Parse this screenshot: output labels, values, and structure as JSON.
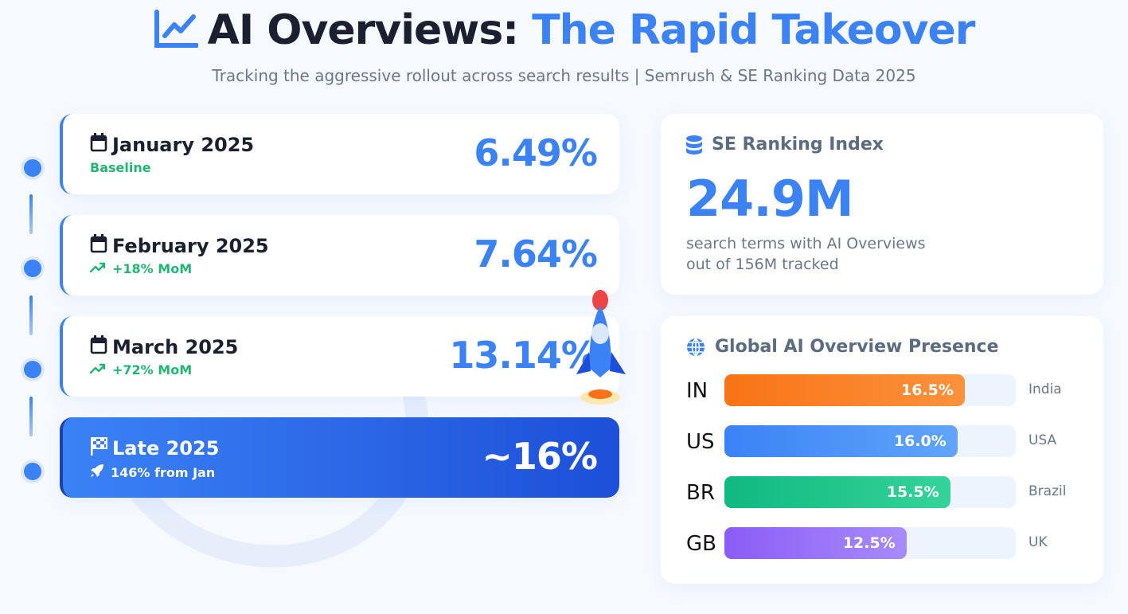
{
  "header": {
    "title_part1": "AI Overviews:",
    "title_part2": "The Rapid Takeover",
    "subtitle": "Tracking the aggressive rollout across search results | Semrush & SE Ranking Data 2025",
    "icon": "chart-line-icon"
  },
  "timeline": [
    {
      "label": "January 2025",
      "sub": "Baseline",
      "value": "6.49%",
      "icon": "calendar-icon",
      "sub_icon": ""
    },
    {
      "label": "February 2025",
      "sub": "+18% MoM",
      "value": "7.64%",
      "icon": "calendar-icon",
      "sub_icon": "trend-up-icon"
    },
    {
      "label": "March 2025",
      "sub": "+72% MoM",
      "value": "13.14%",
      "icon": "calendar-icon",
      "sub_icon": "trend-up-icon"
    },
    {
      "label": "Late 2025",
      "sub": "146% from Jan",
      "value": "~16%",
      "icon": "flag-checkered-icon",
      "sub_icon": "rocket-icon"
    }
  ],
  "se_ranking": {
    "title": "SE Ranking Index",
    "value": "24.9M",
    "desc_line1": "search terms with AI Overviews",
    "desc_line2": "out of 156M tracked",
    "icon": "database-icon"
  },
  "global": {
    "title": "Global AI Overview Presence",
    "icon": "globe-icon",
    "scale_max": 20,
    "rows": [
      {
        "code": "IN",
        "country": "India",
        "value": 16.5,
        "label": "16.5%",
        "color_from": "#f97316",
        "color_to": "#fb923c"
      },
      {
        "code": "US",
        "country": "USA",
        "value": 16.0,
        "label": "16.0%",
        "color_from": "#3b82f6",
        "color_to": "#60a5fa"
      },
      {
        "code": "BR",
        "country": "Brazil",
        "value": 15.5,
        "label": "15.5%",
        "color_from": "#10b981",
        "color_to": "#34d399"
      },
      {
        "code": "GB",
        "country": "UK",
        "value": 12.5,
        "label": "12.5%",
        "color_from": "#8b5cf6",
        "color_to": "#a78bfa"
      }
    ]
  }
}
